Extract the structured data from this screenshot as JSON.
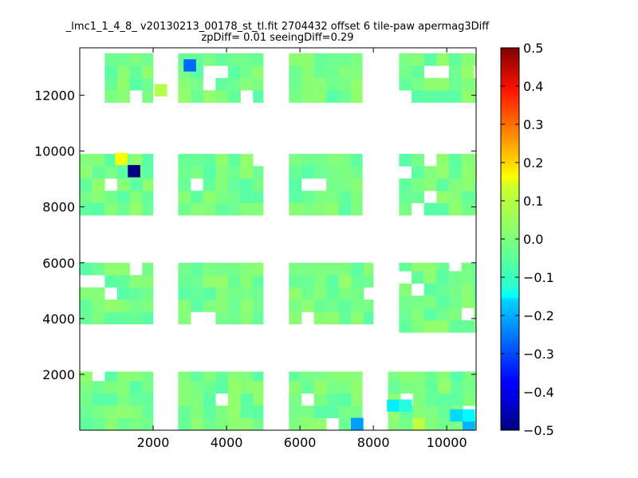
{
  "chart_data": {
    "type": "heatmap",
    "title": "_lmc1_1_4_8_ v20130213_00178_st_tl.fit 2704432 offset 6 tile-paw apermag3Diff",
    "subtitle": "zpDiff= 0.01 seeingDiff=0.29",
    "xlabel": "",
    "ylabel": "",
    "xlim": [
      0,
      10800
    ],
    "ylim": [
      0,
      13700
    ],
    "x_ticks": [
      2000,
      4000,
      6000,
      8000,
      10000
    ],
    "y_ticks": [
      2000,
      4000,
      6000,
      8000,
      10000,
      12000
    ],
    "grid": false,
    "colorbar": {
      "colormap": "jet",
      "range": [
        -0.5,
        0.5
      ],
      "ticks": [
        "0.5",
        "0.4",
        "0.3",
        "0.2",
        "0.1",
        "0.0",
        "−0.1",
        "−0.2",
        "−0.3",
        "−0.4",
        "−0.5"
      ]
    },
    "cell_size": [
      340,
      440
    ],
    "base_value": -0.01,
    "blocks": [
      {
        "x": [
          680,
          2000
        ],
        "y": [
          11740,
          13500
        ]
      },
      {
        "x": [
          2680,
          5000
        ],
        "y": [
          11740,
          13500
        ]
      },
      {
        "x": [
          5700,
          7700
        ],
        "y": [
          11740,
          13500
        ]
      },
      {
        "x": [
          8700,
          10800
        ],
        "y": [
          11740,
          13500
        ]
      },
      {
        "x": [
          0,
          2000
        ],
        "y": [
          7700,
          9900
        ]
      },
      {
        "x": [
          2680,
          5000
        ],
        "y": [
          7700,
          9900
        ]
      },
      {
        "x": [
          5700,
          7700
        ],
        "y": [
          7700,
          9900
        ]
      },
      {
        "x": [
          8700,
          10800
        ],
        "y": [
          7700,
          9900
        ]
      },
      {
        "x": [
          0,
          2000
        ],
        "y": [
          3800,
          6000
        ]
      },
      {
        "x": [
          2680,
          5000
        ],
        "y": [
          3800,
          6000
        ]
      },
      {
        "x": [
          5700,
          8000
        ],
        "y": [
          3800,
          6000
        ]
      },
      {
        "x": [
          8700,
          10800
        ],
        "y": [
          3500,
          6000
        ]
      },
      {
        "x": [
          0,
          2000
        ],
        "y": [
          0,
          2100
        ]
      },
      {
        "x": [
          2680,
          5000
        ],
        "y": [
          0,
          2100
        ]
      },
      {
        "x": [
          5700,
          7700
        ],
        "y": [
          0,
          2100
        ]
      },
      {
        "x": [
          8400,
          10800
        ],
        "y": [
          0,
          2100
        ]
      }
    ],
    "highlights": [
      {
        "x": 1480,
        "y": 9280,
        "value": -0.5
      },
      {
        "x": 1130,
        "y": 9720,
        "value": 0.12
      },
      {
        "x": 3000,
        "y": 13070,
        "value": -0.27
      },
      {
        "x": 2210,
        "y": 12180,
        "value": 0.05
      },
      {
        "x": 7560,
        "y": 220,
        "value": -0.22
      },
      {
        "x": 8540,
        "y": 880,
        "value": -0.14
      },
      {
        "x": 10600,
        "y": 220,
        "value": -0.2
      },
      {
        "x": 10260,
        "y": 530,
        "value": -0.16
      },
      {
        "x": 10600,
        "y": 530,
        "value": -0.13
      },
      {
        "x": 9240,
        "y": 220,
        "value": 0.06
      },
      {
        "x": 8880,
        "y": 880,
        "value": -0.09
      }
    ]
  }
}
